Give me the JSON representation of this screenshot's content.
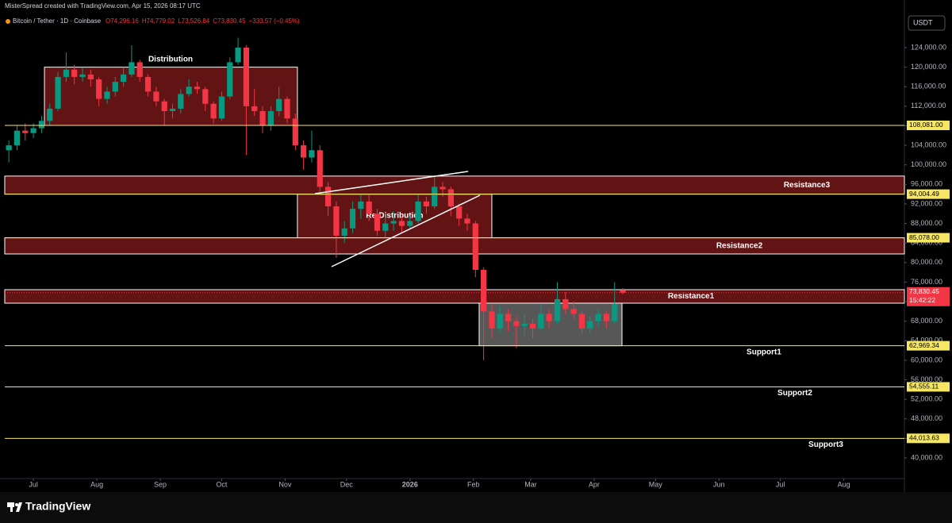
{
  "chart_data": {
    "type": "candlestick",
    "watermark": "MisterSpread created with TradingView.com, Apr 15, 2026 08:17 UTC",
    "symbol": "Bitcoin / Tether · 1D · Coinbase",
    "ohlc_text": [
      "O74,296.16",
      "H74,779.02",
      "L73,526.84",
      "C73,830.45",
      "−333.57 (−0.45%)"
    ],
    "currency": "USDT",
    "brand": "TradingView",
    "xlim": [
      -14,
      425.6
    ],
    "xticks": [
      {
        "value": 0,
        "label": "Jul"
      },
      {
        "value": 31,
        "label": "Aug"
      },
      {
        "value": 62,
        "label": "Sep"
      },
      {
        "value": 92,
        "label": "Oct"
      },
      {
        "value": 123,
        "label": "Nov"
      },
      {
        "value": 153,
        "label": "Dec"
      },
      {
        "value": 184,
        "label": "2026"
      },
      {
        "value": 215,
        "label": "Feb"
      },
      {
        "value": 243,
        "label": "Mar"
      },
      {
        "value": 274,
        "label": "Apr"
      },
      {
        "value": 304,
        "label": "May"
      },
      {
        "value": 335,
        "label": "Jun"
      },
      {
        "value": 365,
        "label": "Jul"
      },
      {
        "value": 396,
        "label": "Aug"
      }
    ],
    "ylim": [
      35780,
      130824
    ],
    "yticks": [
      {
        "value": 40000,
        "label": "40,000.00"
      },
      {
        "value": 44000,
        "label": "44,000.00"
      },
      {
        "value": 48000,
        "label": "48,000.00"
      },
      {
        "value": 52000,
        "label": "52,000.00"
      },
      {
        "value": 56000,
        "label": "56,000.00"
      },
      {
        "value": 60000,
        "label": "60,000.00"
      },
      {
        "value": 64000,
        "label": "64,000.00"
      },
      {
        "value": 68000,
        "label": "68,000.00"
      },
      {
        "value": 72000,
        "label": "72,000.00"
      },
      {
        "value": 76000,
        "label": "76,000.00"
      },
      {
        "value": 80000,
        "label": "80,000.00"
      },
      {
        "value": 84000,
        "label": "84,000.00"
      },
      {
        "value": 88000,
        "label": "88,000.00"
      },
      {
        "value": 92000,
        "label": "92,000.00"
      },
      {
        "value": 96000,
        "label": "96,000.00"
      },
      {
        "value": 100000,
        "label": "100,000.00"
      },
      {
        "value": 104000,
        "label": "104,000.00"
      },
      {
        "value": 108000,
        "label": "108,000.00"
      },
      {
        "value": 112000,
        "label": "112,000.00"
      },
      {
        "value": 116000,
        "label": "116,000.00"
      },
      {
        "value": 120000,
        "label": "120,000.00"
      },
      {
        "value": 124000,
        "label": "124,000.00"
      }
    ],
    "grid": false,
    "up_color": "#089981",
    "down_color": "#f23645",
    "x": [
      -12,
      -8,
      -4,
      0,
      4,
      8,
      12,
      16,
      20,
      24,
      28,
      32,
      36,
      40,
      44,
      48,
      52,
      56,
      60,
      64,
      68,
      72,
      76,
      80,
      84,
      88,
      92,
      96,
      100,
      104,
      108,
      112,
      116,
      120,
      124,
      128,
      132,
      136,
      140,
      144,
      148,
      152,
      156,
      160,
      164,
      168,
      172,
      176,
      180,
      184,
      188,
      192,
      196,
      200,
      204,
      208,
      212,
      216,
      220,
      224,
      228,
      232,
      236,
      240,
      244,
      248,
      252,
      256,
      260,
      264,
      268,
      272,
      276,
      280,
      284,
      288
    ],
    "open": [
      103000,
      104000,
      107000,
      106500,
      107500,
      109000,
      111500,
      118000,
      119500,
      118000,
      118500,
      117500,
      113500,
      115000,
      117000,
      118500,
      121000,
      118000,
      115000,
      113000,
      111000,
      111500,
      114500,
      116000,
      115500,
      112500,
      109500,
      114000,
      121000,
      124000,
      112000,
      111000,
      108000,
      111000,
      113500,
      109500,
      104000,
      101500,
      103000,
      95500,
      91500,
      85500,
      87000,
      91000,
      92500,
      90000,
      86500,
      88000,
      88500,
      87500,
      88500,
      92500,
      91500,
      95500,
      95000,
      91500,
      89000,
      88000,
      78500,
      70000,
      66500,
      69500,
      68000,
      67000,
      67500,
      66500,
      69500,
      68000,
      72500,
      70500,
      69500,
      66500,
      68000,
      69500,
      68000,
      74296.16
    ],
    "high": [
      105000,
      108000,
      108500,
      108500,
      110000,
      112500,
      119000,
      123000,
      120500,
      120000,
      119500,
      118000,
      116000,
      118000,
      120000,
      124500,
      121500,
      118500,
      116000,
      113500,
      112500,
      115500,
      117500,
      117000,
      116000,
      113000,
      115000,
      122000,
      126000,
      124500,
      115500,
      112000,
      112000,
      116000,
      114000,
      110500,
      105000,
      107000,
      104000,
      96500,
      92500,
      88500,
      92500,
      94000,
      94000,
      91000,
      90000,
      90500,
      89500,
      89500,
      94000,
      93500,
      97800,
      96500,
      95500,
      92000,
      90000,
      88500,
      79000,
      71500,
      71000,
      70500,
      69000,
      69500,
      68500,
      71500,
      70500,
      76000,
      74000,
      72000,
      70000,
      69000,
      70500,
      70000,
      76000,
      74779.02
    ],
    "low": [
      100500,
      103000,
      105000,
      105500,
      106500,
      108000,
      111000,
      117000,
      116500,
      117000,
      116000,
      112000,
      112500,
      114000,
      116000,
      118000,
      117000,
      114000,
      112000,
      108000,
      109500,
      110500,
      114000,
      114500,
      111000,
      108500,
      109000,
      113500,
      120500,
      102000,
      110000,
      106500,
      107000,
      110000,
      108500,
      103000,
      99000,
      100500,
      94500,
      89500,
      81000,
      84000,
      86000,
      89000,
      88500,
      85500,
      85000,
      86500,
      86000,
      87000,
      88000,
      90000,
      91000,
      93500,
      89500,
      87500,
      86500,
      77000,
      60000,
      64500,
      65500,
      66000,
      62500,
      65000,
      64500,
      66000,
      66500,
      67500,
      69500,
      68500,
      65500,
      65500,
      67000,
      66500,
      67500,
      73526.84
    ],
    "close": [
      104000,
      107000,
      106500,
      107500,
      109000,
      111500,
      118000,
      119500,
      118000,
      118500,
      117500,
      113500,
      115000,
      117000,
      118500,
      121000,
      118000,
      115000,
      113000,
      111000,
      111500,
      114500,
      116000,
      115500,
      112500,
      109500,
      114000,
      121000,
      124000,
      112000,
      111000,
      108000,
      111000,
      113500,
      109500,
      104000,
      101500,
      103000,
      95500,
      91500,
      85500,
      87000,
      91000,
      92500,
      90000,
      86500,
      88000,
      88500,
      87500,
      88500,
      92500,
      91500,
      95500,
      95000,
      91500,
      89000,
      88000,
      78500,
      70000,
      66500,
      69500,
      68000,
      67000,
      67500,
      66500,
      69500,
      68000,
      72500,
      70500,
      69500,
      66500,
      68000,
      69500,
      68000,
      71500,
      73830.45
    ],
    "zones": [
      {
        "name": "Distribution",
        "x": [
          5.4,
          129
        ],
        "y": [
          108081,
          120000
        ],
        "color": "#b22222"
      },
      {
        "name": "Re-Distribution",
        "x": [
          129,
          224
        ],
        "y": [
          85078,
          94004.49
        ],
        "color": "#b22222"
      },
      {
        "name": "Resistance3",
        "x": [
          -14,
          425.6
        ],
        "y": [
          94004.49,
          97700
        ],
        "color": "#b22222"
      },
      {
        "name": "Resistance2",
        "x": [
          -14,
          425.6
        ],
        "y": [
          81760,
          85078
        ],
        "color": "#b22222"
      },
      {
        "name": "Resistance1",
        "x": [
          -14,
          425.6
        ],
        "y": [
          71685,
          74446
        ],
        "color": "#b22222"
      },
      {
        "x": [
          217.8,
          287.6
        ],
        "y": [
          62969.34,
          71685
        ],
        "color": "#9e9e9e"
      }
    ],
    "levels": [
      {
        "value": 108081,
        "label": "108,081.00"
      },
      {
        "value": 94004.49,
        "label": "94,004.49"
      },
      {
        "value": 85078,
        "label": "85,078.00"
      },
      {
        "value": 62969.34,
        "label": "62,969.34",
        "name": "Support1"
      },
      {
        "value": 54555.11,
        "label": "54,555.11",
        "name": "Support2"
      },
      {
        "value": 44013.63,
        "label": "44,013.63",
        "name": "Support3"
      }
    ],
    "level_color": "#f5e663",
    "last_price": {
      "value": 73830.45,
      "label": "73,830.45",
      "countdown": "15:42:22"
    }
  }
}
